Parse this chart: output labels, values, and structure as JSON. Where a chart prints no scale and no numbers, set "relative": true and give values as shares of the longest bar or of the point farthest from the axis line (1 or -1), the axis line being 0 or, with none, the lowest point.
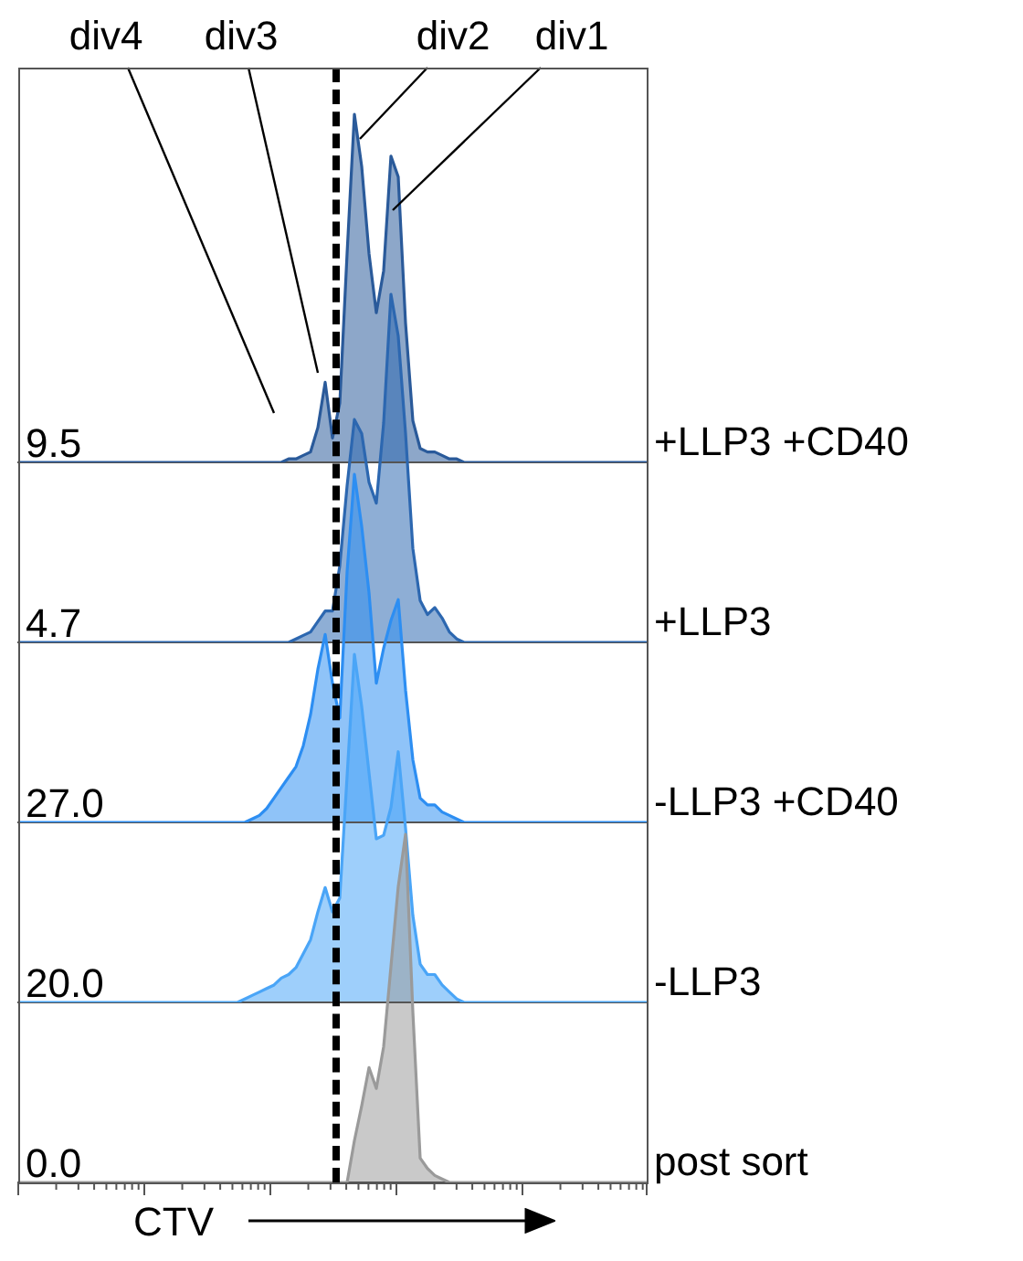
{
  "chart_data": [
    {
      "type": "area",
      "relative": true,
      "legend": false,
      "categories": [
        null,
        null,
        null,
        null,
        null,
        null,
        null,
        null,
        null,
        null,
        null,
        null,
        null,
        null,
        null,
        null,
        null,
        null,
        null,
        null,
        null,
        null,
        null,
        null,
        null,
        null,
        null,
        null,
        null,
        null,
        null,
        null,
        null,
        null,
        null,
        null,
        null,
        null,
        null,
        null,
        null,
        null,
        null,
        null,
        null,
        null,
        null,
        null,
        null,
        null,
        null,
        null,
        null,
        null,
        null,
        null,
        null,
        null,
        null,
        null,
        null,
        null,
        null,
        null,
        null,
        null,
        null,
        null,
        null,
        null,
        null,
        null,
        null,
        null,
        null,
        null,
        null,
        null,
        null,
        null,
        null,
        null,
        null,
        null,
        null,
        null,
        null
      ],
      "series": [
        {
          "name": "+LLP3 +CD40",
          "color": "#2a5a9a",
          "values": [
            0,
            0,
            0,
            0,
            0,
            0,
            0,
            0,
            0,
            0,
            0,
            0,
            0,
            0,
            0,
            0,
            0,
            0,
            0,
            0,
            0,
            0,
            0,
            0,
            0,
            0,
            0,
            0,
            0,
            0,
            0,
            0,
            0,
            0,
            0,
            0,
            0,
            0.01,
            0.01,
            0.02,
            0.03,
            0.1,
            0.23,
            0.07,
            0.17,
            0.6,
            1,
            0.85,
            0.6,
            0.43,
            0.55,
            0.88,
            0.82,
            0.4,
            0.12,
            0.04,
            0.03,
            0.03,
            0.02,
            0.01,
            0.01,
            0,
            0,
            0,
            0,
            0,
            0,
            0,
            0,
            0,
            0,
            0,
            0,
            0,
            0,
            0,
            0,
            0,
            0,
            0,
            0,
            0,
            0,
            0,
            0,
            0,
            0
          ]
        }
      ],
      "annotations": [
        "9.5",
        "div4",
        "div3",
        "div2",
        "div1"
      ]
    },
    {
      "type": "area",
      "relative": true,
      "legend": false,
      "categories": [
        null,
        null,
        null,
        null,
        null,
        null,
        null,
        null,
        null,
        null,
        null,
        null,
        null,
        null,
        null,
        null,
        null,
        null,
        null,
        null,
        null,
        null,
        null,
        null,
        null,
        null,
        null,
        null,
        null,
        null,
        null,
        null,
        null,
        null,
        null,
        null,
        null,
        null,
        null,
        null,
        null,
        null,
        null,
        null,
        null,
        null,
        null,
        null,
        null,
        null,
        null,
        null,
        null,
        null,
        null,
        null,
        null,
        null,
        null,
        null,
        null,
        null,
        null,
        null,
        null,
        null,
        null,
        null,
        null,
        null,
        null,
        null,
        null,
        null,
        null,
        null,
        null,
        null,
        null,
        null,
        null,
        null,
        null,
        null,
        null,
        null,
        null
      ],
      "series": [
        {
          "name": "+LLP3",
          "color": "#2c67b0",
          "values": [
            0,
            0,
            0,
            0,
            0,
            0,
            0,
            0,
            0,
            0,
            0,
            0,
            0,
            0,
            0,
            0,
            0,
            0,
            0,
            0,
            0,
            0,
            0,
            0,
            0,
            0,
            0,
            0,
            0,
            0,
            0,
            0,
            0,
            0,
            0,
            0,
            0,
            0,
            0.01,
            0.02,
            0.03,
            0.06,
            0.09,
            0.09,
            0.22,
            0.45,
            0.64,
            0.6,
            0.46,
            0.4,
            0.63,
            1,
            0.88,
            0.6,
            0.27,
            0.12,
            0.08,
            0.1,
            0.07,
            0.03,
            0.01,
            0,
            0,
            0,
            0,
            0,
            0,
            0,
            0,
            0,
            0,
            0,
            0,
            0,
            0,
            0,
            0,
            0,
            0,
            0,
            0,
            0,
            0,
            0,
            0,
            0,
            0
          ]
        }
      ],
      "annotations": [
        "4.7"
      ]
    },
    {
      "type": "area",
      "relative": true,
      "legend": false,
      "categories": [
        null,
        null,
        null,
        null,
        null,
        null,
        null,
        null,
        null,
        null,
        null,
        null,
        null,
        null,
        null,
        null,
        null,
        null,
        null,
        null,
        null,
        null,
        null,
        null,
        null,
        null,
        null,
        null,
        null,
        null,
        null,
        null,
        null,
        null,
        null,
        null,
        null,
        null,
        null,
        null,
        null,
        null,
        null,
        null,
        null,
        null,
        null,
        null,
        null,
        null,
        null,
        null,
        null,
        null,
        null,
        null,
        null,
        null,
        null,
        null,
        null,
        null,
        null,
        null,
        null,
        null,
        null,
        null,
        null,
        null,
        null,
        null,
        null,
        null,
        null,
        null,
        null,
        null,
        null,
        null,
        null,
        null,
        null,
        null,
        null,
        null,
        null
      ],
      "series": [
        {
          "name": "-LLP3 +CD40",
          "color": "#2d8ef2",
          "values": [
            0,
            0,
            0,
            0,
            0,
            0,
            0,
            0,
            0,
            0,
            0,
            0,
            0,
            0,
            0,
            0,
            0,
            0,
            0,
            0,
            0,
            0,
            0,
            0,
            0,
            0,
            0,
            0,
            0,
            0,
            0,
            0,
            0.01,
            0.02,
            0.04,
            0.07,
            0.1,
            0.13,
            0.16,
            0.22,
            0.31,
            0.44,
            0.54,
            0.4,
            0.3,
            0.72,
            1,
            0.85,
            0.66,
            0.4,
            0.5,
            0.58,
            0.64,
            0.38,
            0.18,
            0.07,
            0.05,
            0.05,
            0.03,
            0.02,
            0.01,
            0,
            0,
            0,
            0,
            0,
            0,
            0,
            0,
            0,
            0,
            0,
            0,
            0,
            0,
            0,
            0,
            0,
            0,
            0,
            0,
            0,
            0,
            0,
            0,
            0,
            0
          ]
        }
      ],
      "annotations": [
        "27.0"
      ]
    },
    {
      "type": "area",
      "relative": true,
      "legend": false,
      "categories": [
        null,
        null,
        null,
        null,
        null,
        null,
        null,
        null,
        null,
        null,
        null,
        null,
        null,
        null,
        null,
        null,
        null,
        null,
        null,
        null,
        null,
        null,
        null,
        null,
        null,
        null,
        null,
        null,
        null,
        null,
        null,
        null,
        null,
        null,
        null,
        null,
        null,
        null,
        null,
        null,
        null,
        null,
        null,
        null,
        null,
        null,
        null,
        null,
        null,
        null,
        null,
        null,
        null,
        null,
        null,
        null,
        null,
        null,
        null,
        null,
        null,
        null,
        null,
        null,
        null,
        null,
        null,
        null,
        null,
        null,
        null,
        null,
        null,
        null,
        null,
        null,
        null,
        null,
        null,
        null,
        null,
        null,
        null,
        null,
        null,
        null,
        null
      ],
      "series": [
        {
          "name": "-LLP3",
          "color": "#4aa5f7",
          "values": [
            0,
            0,
            0,
            0,
            0,
            0,
            0,
            0,
            0,
            0,
            0,
            0,
            0,
            0,
            0,
            0,
            0,
            0,
            0,
            0,
            0,
            0,
            0,
            0,
            0,
            0,
            0,
            0,
            0,
            0,
            0,
            0.01,
            0.02,
            0.03,
            0.04,
            0.05,
            0.07,
            0.08,
            0.1,
            0.14,
            0.18,
            0.26,
            0.33,
            0.26,
            0.3,
            0.65,
            1,
            0.85,
            0.66,
            0.47,
            0.48,
            0.56,
            0.72,
            0.5,
            0.25,
            0.11,
            0.08,
            0.08,
            0.05,
            0.03,
            0.01,
            0,
            0,
            0,
            0,
            0,
            0,
            0,
            0,
            0,
            0,
            0,
            0,
            0,
            0,
            0,
            0,
            0,
            0,
            0,
            0,
            0,
            0,
            0,
            0,
            0,
            0
          ]
        }
      ],
      "annotations": [
        "20.0"
      ]
    },
    {
      "type": "area",
      "relative": true,
      "legend": false,
      "xlabel": "CTV",
      "categories": [
        null,
        null,
        null,
        null,
        null,
        null,
        null,
        null,
        null,
        null,
        null,
        null,
        null,
        null,
        null,
        null,
        null,
        null,
        null,
        null,
        null,
        null,
        null,
        null,
        null,
        null,
        null,
        null,
        null,
        null,
        null,
        null,
        null,
        null,
        null,
        null,
        null,
        null,
        null,
        null,
        null,
        null,
        null,
        null,
        null,
        null,
        null,
        null,
        null,
        null,
        null,
        null,
        null,
        null,
        null,
        null,
        null,
        null,
        null,
        null,
        null,
        null,
        null,
        null,
        null,
        null,
        null,
        null,
        null,
        null,
        null,
        null,
        null,
        null,
        null,
        null,
        null,
        null,
        null,
        null,
        null,
        null,
        null,
        null,
        null,
        null,
        null
      ],
      "series": [
        {
          "name": "post sort",
          "color": "#9a9a9a",
          "values": [
            0,
            0,
            0,
            0,
            0,
            0,
            0,
            0,
            0,
            0,
            0,
            0,
            0,
            0,
            0,
            0,
            0,
            0,
            0,
            0,
            0,
            0,
            0,
            0,
            0,
            0,
            0,
            0,
            0,
            0,
            0,
            0,
            0,
            0,
            0,
            0,
            0,
            0,
            0,
            0,
            0,
            0,
            0,
            0,
            0,
            0,
            0.12,
            0.22,
            0.33,
            0.27,
            0.39,
            0.62,
            0.85,
            1,
            0.49,
            0.07,
            0.04,
            0.02,
            0.01,
            0,
            0,
            0,
            0,
            0,
            0,
            0,
            0,
            0,
            0,
            0,
            0,
            0,
            0,
            0,
            0,
            0,
            0,
            0,
            0,
            0,
            0,
            0,
            0,
            0,
            0,
            0,
            0
          ]
        }
      ],
      "annotations": [
        "0.0"
      ]
    }
  ]
}
